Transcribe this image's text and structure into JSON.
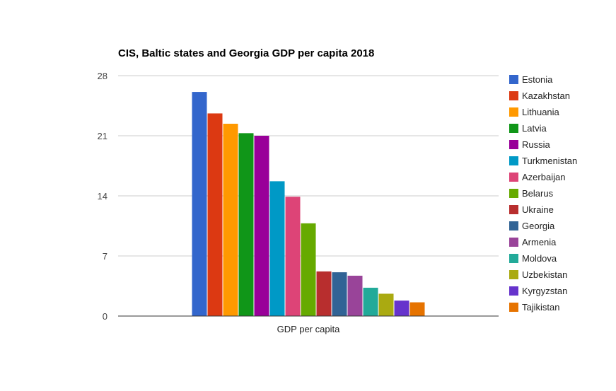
{
  "chart_data": {
    "type": "bar",
    "title": "CIS, Baltic states and Georgia GDP per capita 2018",
    "categories": [
      "GDP per capita"
    ],
    "ylim": [
      0,
      28
    ],
    "yticks": [
      0,
      7,
      14,
      21,
      28
    ],
    "grid": true,
    "legend_position": "right",
    "series": [
      {
        "name": "Estonia",
        "color": "#3366cc",
        "values": [
          26.1
        ]
      },
      {
        "name": "Kazakhstan",
        "color": "#dc3912",
        "values": [
          23.6
        ]
      },
      {
        "name": "Lithuania",
        "color": "#ff9900",
        "values": [
          22.4
        ]
      },
      {
        "name": "Latvia",
        "color": "#109618",
        "values": [
          21.3
        ]
      },
      {
        "name": "Russia",
        "color": "#990099",
        "values": [
          21.0
        ]
      },
      {
        "name": "Turkmenistan",
        "color": "#0099c6",
        "values": [
          15.7
        ]
      },
      {
        "name": "Azerbaijan",
        "color": "#dd4477",
        "values": [
          13.9
        ]
      },
      {
        "name": "Belarus",
        "color": "#66aa00",
        "values": [
          10.8
        ]
      },
      {
        "name": "Ukraine",
        "color": "#b82e2e",
        "values": [
          5.2
        ]
      },
      {
        "name": "Georgia",
        "color": "#316395",
        "values": [
          5.1
        ]
      },
      {
        "name": "Armenia",
        "color": "#994499",
        "values": [
          4.7
        ]
      },
      {
        "name": "Moldova",
        "color": "#22aa99",
        "values": [
          3.3
        ]
      },
      {
        "name": "Uzbekistan",
        "color": "#aaaa11",
        "values": [
          2.6
        ]
      },
      {
        "name": "Kyrgyzstan",
        "color": "#6633cc",
        "values": [
          1.8
        ]
      },
      {
        "name": "Tajikistan",
        "color": "#e67300",
        "values": [
          1.6
        ]
      }
    ]
  }
}
